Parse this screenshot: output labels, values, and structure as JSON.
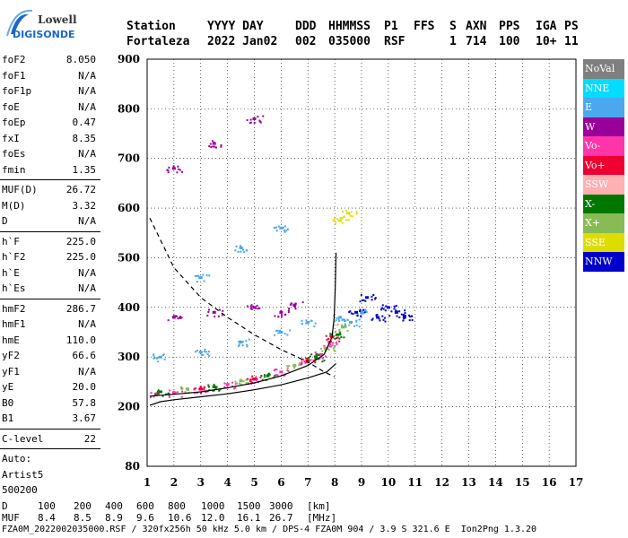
{
  "logo": {
    "brand": "Lowell",
    "product": "DIGISONDE"
  },
  "header": {
    "labels": [
      "Station",
      "YYYY DAY",
      "DDD",
      "HHMMSS",
      "P1",
      "FFS",
      "S",
      "AXN",
      "PPS",
      "IGA",
      "PS"
    ],
    "values": [
      "Fortaleza",
      "2022 Jan02",
      "002",
      "035000",
      "RSF",
      "",
      "1",
      "714",
      "100",
      "10+",
      "11"
    ]
  },
  "params": {
    "group1": [
      {
        "name": "foF2",
        "value": "8.050"
      },
      {
        "name": "foF1",
        "value": "N/A"
      },
      {
        "name": "foF1p",
        "value": "N/A"
      },
      {
        "name": "foE",
        "value": "N/A"
      },
      {
        "name": "foEp",
        "value": "0.47"
      },
      {
        "name": "fxI",
        "value": "8.35"
      },
      {
        "name": "foEs",
        "value": "N/A"
      },
      {
        "name": "fmin",
        "value": "1.35"
      }
    ],
    "group2": [
      {
        "name": "MUF(D)",
        "value": "26.72"
      },
      {
        "name": "M(D)",
        "value": "3.32"
      },
      {
        "name": "D",
        "value": "N/A"
      }
    ],
    "group3": [
      {
        "name": "h`F",
        "value": "225.0"
      },
      {
        "name": "h`F2",
        "value": "225.0"
      },
      {
        "name": "h`E",
        "value": "N/A"
      },
      {
        "name": "h`Es",
        "value": "N/A"
      }
    ],
    "group4": [
      {
        "name": "hmF2",
        "value": "286.7"
      },
      {
        "name": "hmF1",
        "value": "N/A"
      },
      {
        "name": "hmE",
        "value": "110.0"
      },
      {
        "name": "yF2",
        "value": "66.6"
      },
      {
        "name": "yF1",
        "value": "N/A"
      },
      {
        "name": "yE",
        "value": "20.0"
      },
      {
        "name": "B0",
        "value": "57.8"
      },
      {
        "name": "B1",
        "value": "3.67"
      }
    ],
    "group5": [
      {
        "name": "C-level",
        "value": "22"
      }
    ],
    "autoscaling": [
      "Auto:",
      "Artist5",
      "500200"
    ]
  },
  "legend": [
    {
      "label": "NoVal",
      "color": "#7f7f7f"
    },
    {
      "label": "NNE",
      "color": "#00ddff"
    },
    {
      "label": "E",
      "color": "#4aa8ee"
    },
    {
      "label": "W",
      "color": "#990099"
    },
    {
      "label": "Vo-",
      "color": "#ff33aa"
    },
    {
      "label": "Vo+",
      "color": "#ee0033"
    },
    {
      "label": "SSW",
      "color": "#ffb0b0"
    },
    {
      "label": "X-",
      "color": "#007700"
    },
    {
      "label": "X+",
      "color": "#88bb55"
    },
    {
      "label": "SSE",
      "color": "#dddd00"
    },
    {
      "label": "NNW",
      "color": "#0000cc"
    }
  ],
  "chart_data": {
    "type": "scatter",
    "xlim": [
      1,
      17
    ],
    "ylim": [
      80,
      900
    ],
    "x_ticks": [
      1,
      2,
      3,
      4,
      5,
      6,
      7,
      8,
      9,
      10,
      11,
      12,
      13,
      14,
      15,
      16,
      17
    ],
    "y_ticks": [
      80,
      200,
      300,
      400,
      500,
      600,
      700,
      800,
      900
    ],
    "grid": true,
    "legend_position": "right",
    "series": [
      {
        "name": "Vo-",
        "color": "#ff33aa",
        "points": [
          [
            1.35,
            226
          ],
          [
            2,
            228
          ],
          [
            3,
            235
          ],
          [
            4,
            245
          ],
          [
            5,
            255
          ],
          [
            6,
            270
          ],
          [
            7,
            290
          ],
          [
            7.5,
            305
          ],
          [
            7.8,
            330
          ]
        ]
      },
      {
        "name": "Vo+",
        "color": "#ee0033",
        "points": [
          [
            3,
            236
          ],
          [
            5,
            256
          ],
          [
            7,
            292
          ],
          [
            7.9,
            340
          ]
        ]
      },
      {
        "name": "X-",
        "color": "#007700",
        "points": [
          [
            1.5,
            230
          ],
          [
            3.5,
            240
          ],
          [
            5.5,
            262
          ],
          [
            7.3,
            300
          ],
          [
            8.1,
            345
          ]
        ]
      },
      {
        "name": "X+",
        "color": "#88bb55",
        "points": [
          [
            2.5,
            236
          ],
          [
            4.5,
            252
          ],
          [
            6.5,
            283
          ],
          [
            7.7,
            318
          ],
          [
            8.3,
            360
          ]
        ]
      },
      {
        "name": "E",
        "color": "#4aa8ee",
        "points": [
          [
            1.5,
            300
          ],
          [
            3,
            310
          ],
          [
            4.5,
            330
          ],
          [
            6,
            350
          ],
          [
            7,
            370
          ],
          [
            8.2,
            380
          ],
          [
            8.6,
            370
          ],
          [
            9,
            390
          ],
          [
            3,
            460
          ],
          [
            4.5,
            520
          ],
          [
            6,
            560
          ]
        ]
      },
      {
        "name": "W",
        "color": "#990099",
        "points": [
          [
            2,
            380
          ],
          [
            3.5,
            390
          ],
          [
            5,
            400
          ],
          [
            6,
            390
          ],
          [
            6.5,
            405
          ],
          [
            2,
            680
          ],
          [
            3.5,
            730
          ],
          [
            5,
            780
          ]
        ]
      },
      {
        "name": "NNW",
        "color": "#0000cc",
        "points": [
          [
            8.8,
            390
          ],
          [
            9.2,
            420
          ],
          [
            9.6,
            380
          ],
          [
            10,
            400
          ],
          [
            10.3,
            390
          ],
          [
            10.6,
            380
          ]
        ]
      },
      {
        "name": "SSE",
        "color": "#dddd00",
        "points": [
          [
            8.2,
            575
          ],
          [
            8.5,
            590
          ]
        ]
      }
    ],
    "traces": [
      {
        "name": "virtual-height",
        "points": [
          [
            1.1,
            221
          ],
          [
            1.5,
            223
          ],
          [
            2,
            225
          ],
          [
            3,
            230
          ],
          [
            4,
            238
          ],
          [
            5,
            248
          ],
          [
            6,
            262
          ],
          [
            7,
            283
          ],
          [
            7.6,
            305
          ],
          [
            7.9,
            340
          ],
          [
            7.98,
            380
          ],
          [
            8.02,
            440
          ],
          [
            8.05,
            510
          ]
        ]
      },
      {
        "name": "true-height",
        "points": [
          [
            1.1,
            203
          ],
          [
            1.5,
            210
          ],
          [
            2,
            214
          ],
          [
            3,
            220
          ],
          [
            4,
            226
          ],
          [
            5,
            234
          ],
          [
            6,
            244
          ],
          [
            7,
            258
          ],
          [
            7.7,
            270
          ],
          [
            8.05,
            287
          ]
        ]
      },
      {
        "name": "titan",
        "points": [
          [
            1.1,
            580
          ],
          [
            2,
            480
          ],
          [
            3,
            420
          ],
          [
            4,
            380
          ],
          [
            5,
            345
          ],
          [
            6,
            315
          ],
          [
            7,
            290
          ],
          [
            7.6,
            270
          ],
          [
            8,
            260
          ]
        ]
      }
    ]
  },
  "footer": {
    "d_label": "D",
    "d_values": [
      "100",
      "200",
      "400",
      "600",
      "800",
      "1000",
      "1500",
      "3000",
      "[km]"
    ],
    "muf_label": "MUF",
    "muf_values": [
      "8.4",
      "8.5",
      "8.9",
      "9.6",
      "10.6",
      "12.0",
      "16.1",
      "26.7",
      "[MHz]"
    ],
    "file_line": "FZA0M_2022002035000.RSF / 320fx256h 50 kHz 5.0 km / DPS-4 FZA0M 904 / 3.9 S 321.6 E  Ion2Png 1.3.20"
  }
}
